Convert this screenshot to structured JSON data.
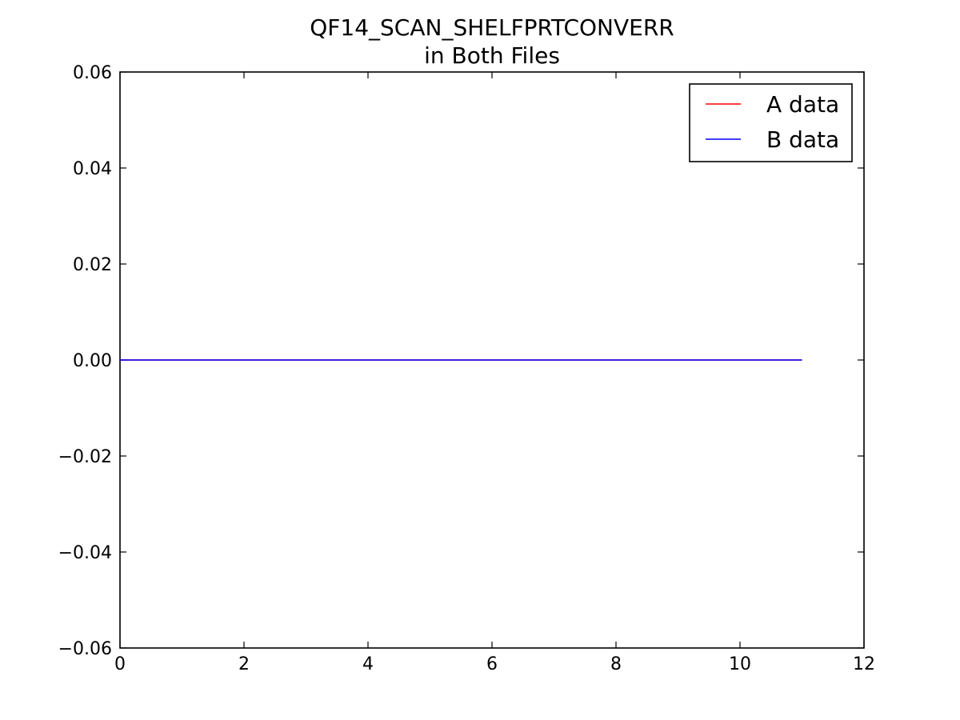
{
  "chart_data": {
    "type": "line",
    "title": "QF14_SCAN_SHELFPRTCONVERR",
    "subtitle": "in Both Files",
    "xlim": [
      0,
      12
    ],
    "ylim": [
      -0.06,
      0.06
    ],
    "x_ticks": [
      0,
      2,
      4,
      6,
      8,
      10,
      12
    ],
    "x_tick_labels": [
      "0",
      "2",
      "4",
      "6",
      "8",
      "10",
      "12"
    ],
    "y_ticks": [
      -0.06,
      -0.04,
      -0.02,
      0.0,
      0.02,
      0.04,
      0.06
    ],
    "y_tick_labels": [
      "−0.06",
      "−0.04",
      "−0.02",
      "0.00",
      "0.02",
      "0.04",
      "0.06"
    ],
    "grid": false,
    "legend_position": "top-right",
    "series": [
      {
        "name": "A data",
        "color": "#ff0000",
        "x": [
          0,
          11
        ],
        "y": [
          0,
          0
        ]
      },
      {
        "name": "B data",
        "color": "#0000ff",
        "x": [
          0,
          11
        ],
        "y": [
          0,
          0
        ]
      }
    ]
  }
}
